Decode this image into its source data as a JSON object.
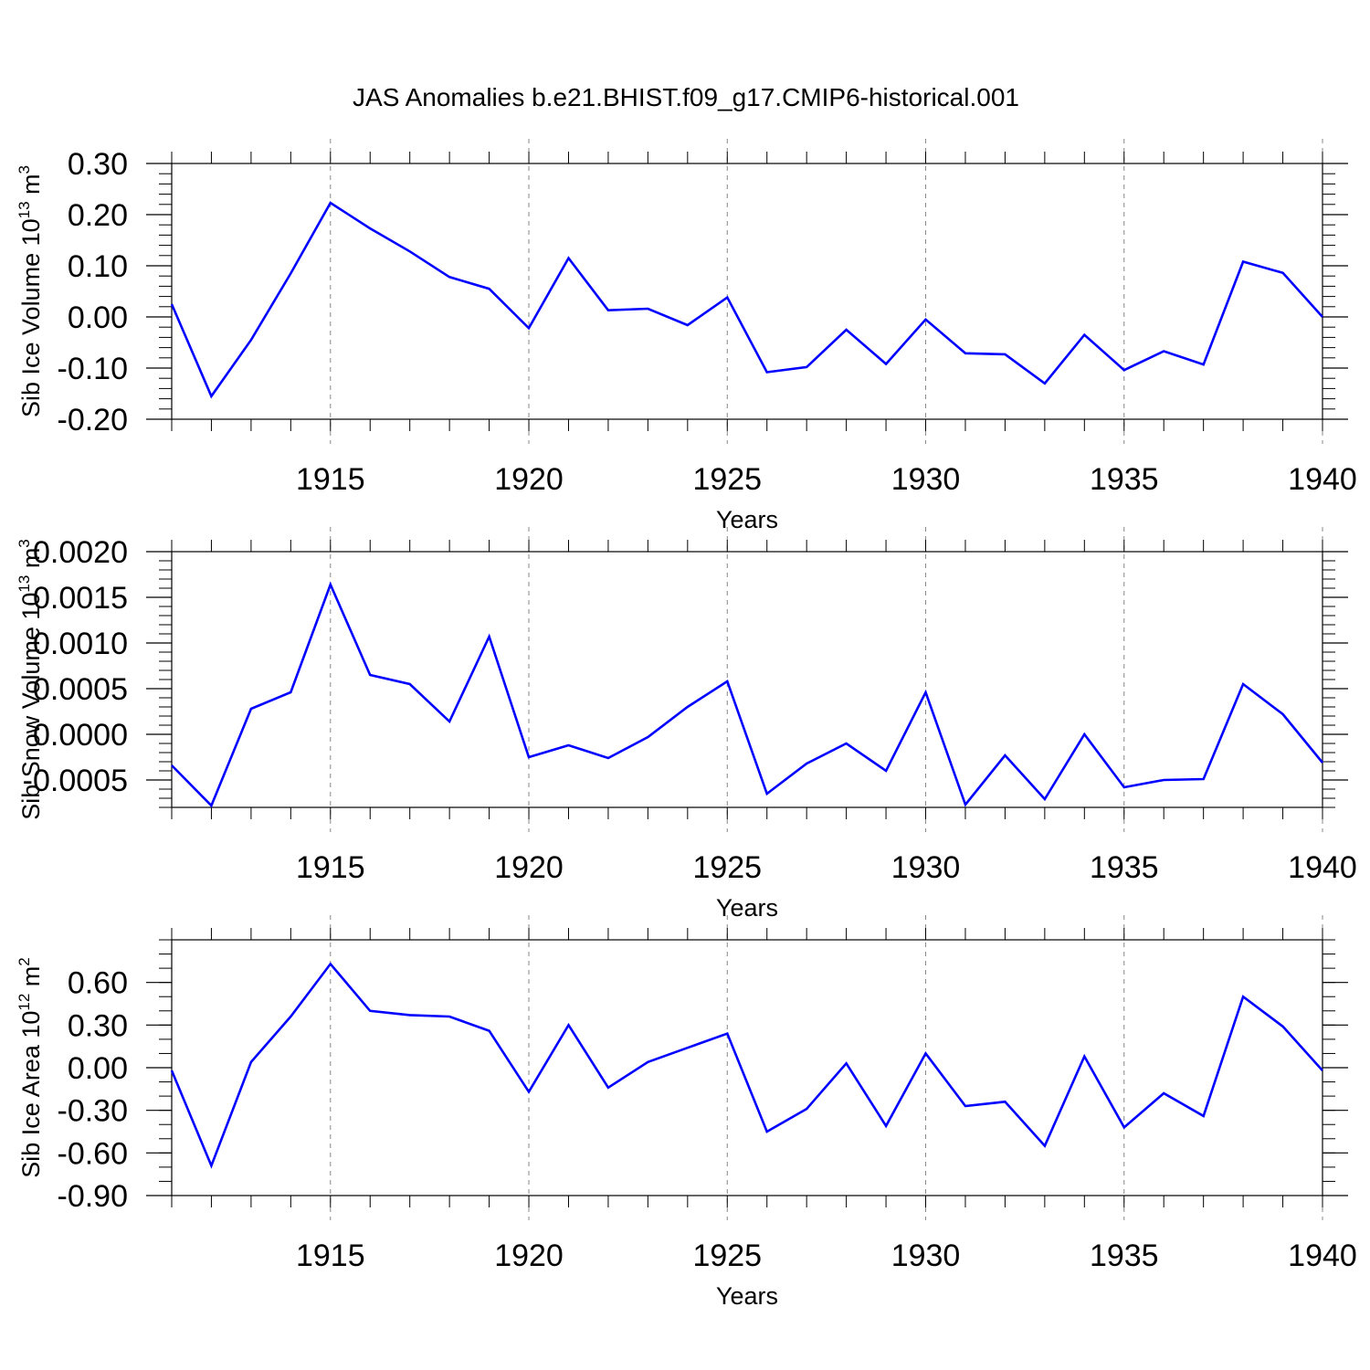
{
  "title": "JAS Anomalies b.e21.BHIST.f09_g17.CMIP6-historical.001",
  "colors": {
    "line": "#0000ff",
    "axis": "#000000",
    "grid": "#888888",
    "background": "#ffffff"
  },
  "chart_data": [
    {
      "type": "line",
      "title": "JAS Anomalies b.e21.BHIST.f09_g17.CMIP6-historical.001",
      "xlabel": "Years",
      "ylabel": {
        "text": "Sib Ice Volume 10",
        "sup": "13",
        "unit": " m",
        "unit_sup": "3"
      },
      "xlim": [
        1911,
        1940
      ],
      "ylim": [
        -0.2,
        0.3
      ],
      "xticks": [
        1915,
        1920,
        1925,
        1930,
        1935,
        1940
      ],
      "xtick_labels": [
        "1915",
        "1920",
        "1925",
        "1930",
        "1935",
        "1940"
      ],
      "yticks": [
        -0.2,
        -0.1,
        0.0,
        0.1,
        0.2,
        0.3
      ],
      "ytick_labels": [
        "-0.20",
        "-0.10",
        "0.00",
        "0.10",
        "0.20",
        "0.30"
      ],
      "yminor_step": 0.02,
      "grid": "vertical dashed at major x ticks",
      "x": [
        1911,
        1912,
        1913,
        1914,
        1915,
        1916,
        1917,
        1918,
        1919,
        1920,
        1921,
        1922,
        1923,
        1924,
        1925,
        1926,
        1927,
        1928,
        1929,
        1930,
        1931,
        1932,
        1933,
        1934,
        1935,
        1936,
        1937,
        1938,
        1939,
        1940
      ],
      "series": [
        {
          "name": "Sib Ice Volume",
          "values": [
            0.025,
            -0.155,
            -0.045,
            0.085,
            0.223,
            0.173,
            0.128,
            0.078,
            0.055,
            -0.022,
            0.115,
            0.013,
            0.016,
            -0.016,
            0.038,
            -0.108,
            -0.098,
            -0.025,
            -0.092,
            -0.005,
            -0.071,
            -0.073,
            -0.13,
            -0.035,
            -0.104,
            -0.067,
            -0.093,
            0.108,
            0.086,
            0.0
          ]
        }
      ]
    },
    {
      "type": "line",
      "xlabel": "Years",
      "ylabel": {
        "text": "Sib Snow Volume 10",
        "sup": "13",
        "unit": " m",
        "unit_sup": "3"
      },
      "xlim": [
        1911,
        1940
      ],
      "ylim": [
        -0.0008,
        0.002
      ],
      "xticks": [
        1915,
        1920,
        1925,
        1930,
        1935,
        1940
      ],
      "xtick_labels": [
        "1915",
        "1920",
        "1925",
        "1930",
        "1935",
        "1940"
      ],
      "yticks": [
        -0.0005,
        0.0,
        0.0005,
        0.001,
        0.0015,
        0.002
      ],
      "ytick_labels": [
        "-0.0005",
        "0.0000",
        "0.0005",
        "0.0010",
        "0.0015",
        "0.0020"
      ],
      "yminor_step": 0.0001,
      "grid": "vertical dashed at major x ticks",
      "x": [
        1911,
        1912,
        1913,
        1914,
        1915,
        1916,
        1917,
        1918,
        1919,
        1920,
        1921,
        1922,
        1923,
        1924,
        1925,
        1926,
        1927,
        1928,
        1929,
        1930,
        1931,
        1932,
        1933,
        1934,
        1935,
        1936,
        1937,
        1938,
        1939,
        1940
      ],
      "series": [
        {
          "name": "Sib Snow Volume",
          "values": [
            -0.00034,
            -0.00078,
            0.00028,
            0.00046,
            0.00164,
            0.00065,
            0.00055,
            0.00014,
            0.00107,
            -0.00025,
            -0.00012,
            -0.00026,
            -3e-05,
            0.0003,
            0.00058,
            -0.00065,
            -0.00032,
            -0.0001,
            -0.0004,
            0.00046,
            -0.00077,
            -0.00023,
            -0.00071,
            0.0,
            -0.00058,
            -0.0005,
            -0.00049,
            0.00055,
            0.00022,
            -0.00031
          ]
        }
      ]
    },
    {
      "type": "line",
      "xlabel": "Years",
      "ylabel": {
        "text": "Sib Ice Area 10",
        "sup": "12",
        "unit": " m",
        "unit_sup": "2"
      },
      "xlim": [
        1911,
        1940
      ],
      "ylim": [
        -0.9,
        0.9
      ],
      "xticks": [
        1915,
        1920,
        1925,
        1930,
        1935,
        1940
      ],
      "xtick_labels": [
        "1915",
        "1920",
        "1925",
        "1930",
        "1935",
        "1940"
      ],
      "yticks": [
        -0.9,
        -0.6,
        -0.3,
        0.0,
        0.3,
        0.6
      ],
      "ytick_labels": [
        "-0.90",
        "-0.60",
        "-0.30",
        "0.00",
        "0.30",
        "0.60"
      ],
      "yminor_step": 0.1,
      "grid": "vertical dashed at major x ticks",
      "x": [
        1911,
        1912,
        1913,
        1914,
        1915,
        1916,
        1917,
        1918,
        1919,
        1920,
        1921,
        1922,
        1923,
        1924,
        1925,
        1926,
        1927,
        1928,
        1929,
        1930,
        1931,
        1932,
        1933,
        1934,
        1935,
        1936,
        1937,
        1938,
        1939,
        1940
      ],
      "series": [
        {
          "name": "Sib Ice Area",
          "values": [
            -0.02,
            -0.69,
            0.04,
            0.36,
            0.73,
            0.4,
            0.37,
            0.36,
            0.26,
            -0.17,
            0.3,
            -0.14,
            0.04,
            0.14,
            0.24,
            -0.45,
            -0.29,
            0.03,
            -0.41,
            0.1,
            -0.27,
            -0.24,
            -0.55,
            0.08,
            -0.42,
            -0.18,
            -0.34,
            0.5,
            0.29,
            -0.02
          ]
        }
      ]
    }
  ]
}
